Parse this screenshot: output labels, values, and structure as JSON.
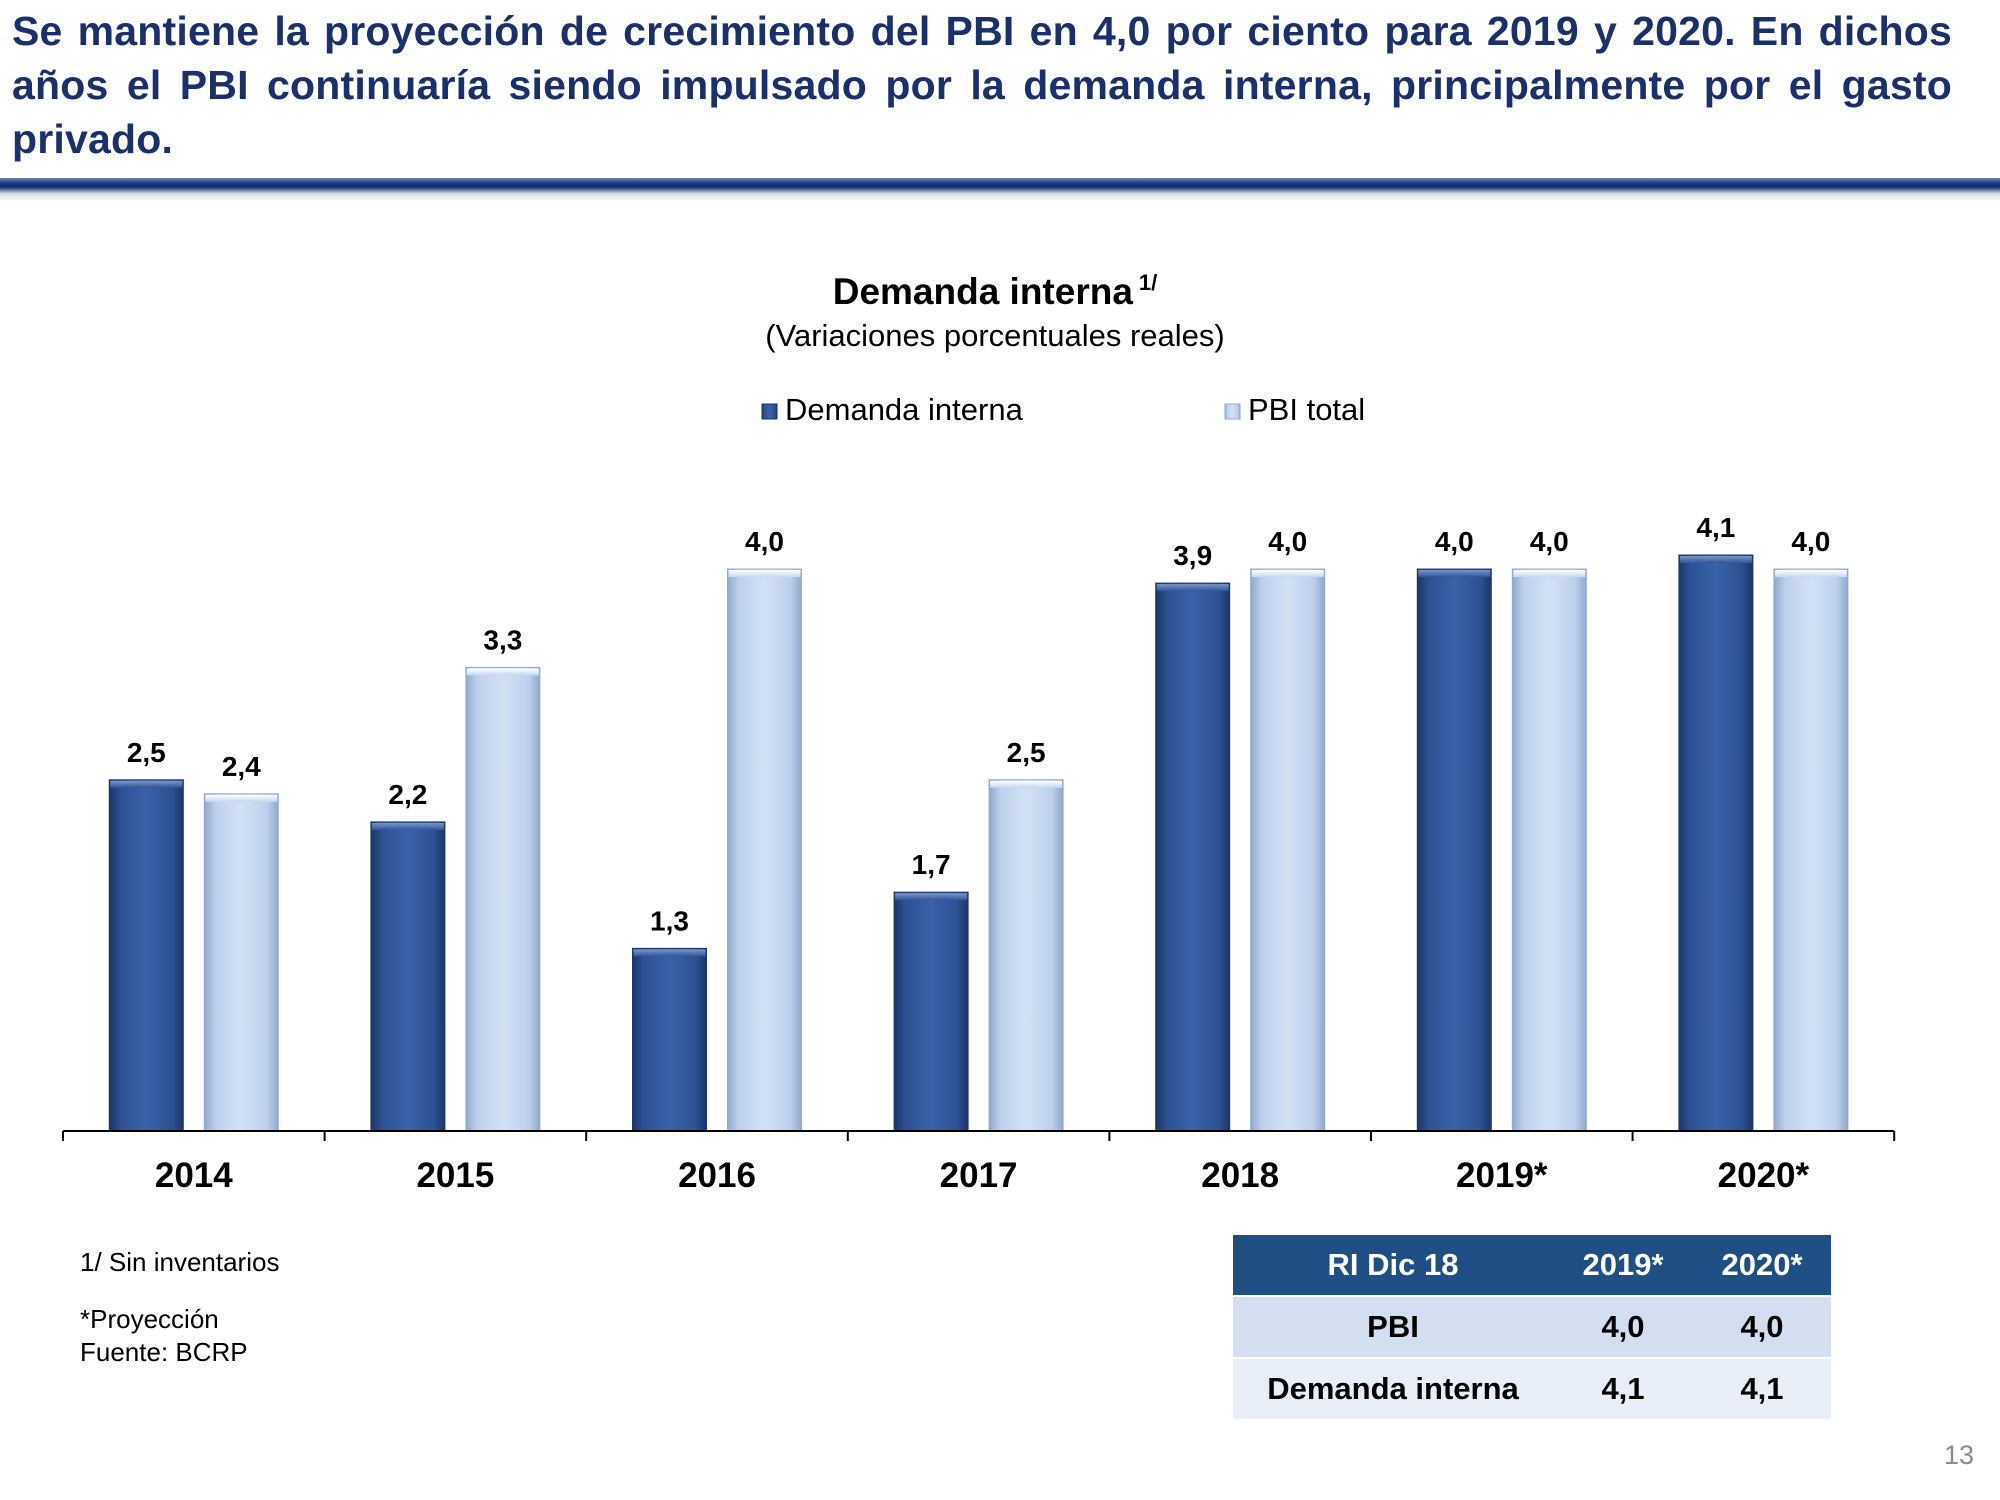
{
  "slide": {
    "headline": "Se mantiene la proyección de crecimiento del PBI en 4,0 por ciento para 2019 y 2020. En dichos años el PBI continuaría siendo impulsado por la demanda interna, principalmente por el gasto privado.",
    "page_number": "13"
  },
  "chart": {
    "title": "Demanda interna",
    "title_note": "1/",
    "subtitle": "(Variaciones porcentuales reales)"
  },
  "chart_data": {
    "type": "bar",
    "title": "Demanda interna 1/",
    "subtitle": "(Variaciones porcentuales reales)",
    "categories": [
      "2014",
      "2015",
      "2016",
      "2017",
      "2018",
      "2019*",
      "2020*"
    ],
    "series": [
      {
        "name": "Demanda interna",
        "values": [
          2.5,
          2.2,
          1.3,
          1.7,
          3.9,
          4.0,
          4.1
        ],
        "labels": [
          "2,5",
          "2,2",
          "1,3",
          "1,7",
          "3,9",
          "4,0",
          "4,1"
        ],
        "color": "#2f5597"
      },
      {
        "name": "PBI total",
        "values": [
          2.4,
          3.3,
          4.0,
          2.5,
          4.0,
          4.0,
          4.0
        ],
        "labels": [
          "2,4",
          "3,3",
          "4,0",
          "2,5",
          "4,0",
          "4,0",
          "4,0"
        ],
        "color": "#c5d7f0"
      }
    ],
    "ylim": [
      0,
      4.1
    ],
    "xlabel": "",
    "ylabel": "",
    "grid": false,
    "legend": "top-center"
  },
  "notes": {
    "footnote": "1/ Sin inventarios",
    "projection": "*Proyección",
    "source": "Fuente: BCRP"
  },
  "summary_table": {
    "headers": [
      "RI Dic 18",
      "2019*",
      "2020*"
    ],
    "rows": [
      [
        "PBI",
        "4,0",
        "4,0"
      ],
      [
        "Demanda interna",
        "4,1",
        "4,1"
      ]
    ]
  },
  "colors": {
    "headline": "#1a2f6b",
    "bar_dark": "#2f5597",
    "bar_light": "#c5d7f0",
    "table_header": "#1f4e85"
  }
}
